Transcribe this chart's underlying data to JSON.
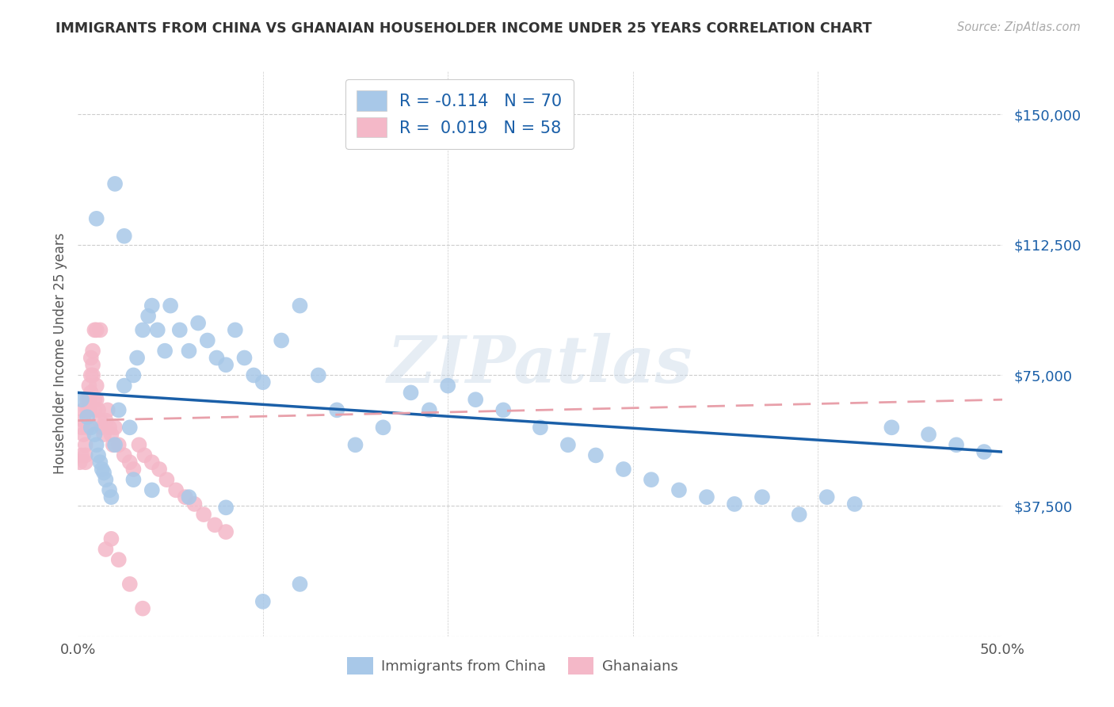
{
  "title": "IMMIGRANTS FROM CHINA VS GHANAIAN HOUSEHOLDER INCOME UNDER 25 YEARS CORRELATION CHART",
  "source": "Source: ZipAtlas.com",
  "ylabel": "Householder Income Under 25 years",
  "xlim": [
    0.0,
    0.5
  ],
  "ylim": [
    0,
    162500
  ],
  "yticks": [
    0,
    37500,
    75000,
    112500,
    150000
  ],
  "ytick_labels": [
    "",
    "$37,500",
    "$75,000",
    "$112,500",
    "$150,000"
  ],
  "xticks": [
    0.0,
    0.1,
    0.2,
    0.3,
    0.4,
    0.5
  ],
  "xtick_labels": [
    "0.0%",
    "",
    "",
    "",
    "",
    "50.0%"
  ],
  "legend1_r": "-0.114",
  "legend1_n": "70",
  "legend2_r": "0.019",
  "legend2_n": "58",
  "china_color": "#a8c8e8",
  "ghana_color": "#f4b8c8",
  "china_line_color": "#1a5fa8",
  "ghana_line_color": "#e8a0aa",
  "background_color": "#ffffff",
  "china_x": [
    0.002,
    0.005,
    0.007,
    0.009,
    0.01,
    0.011,
    0.012,
    0.013,
    0.014,
    0.015,
    0.017,
    0.018,
    0.02,
    0.022,
    0.025,
    0.028,
    0.03,
    0.032,
    0.035,
    0.038,
    0.04,
    0.043,
    0.047,
    0.05,
    0.055,
    0.06,
    0.065,
    0.07,
    0.075,
    0.08,
    0.085,
    0.09,
    0.095,
    0.1,
    0.11,
    0.12,
    0.13,
    0.14,
    0.15,
    0.165,
    0.18,
    0.19,
    0.2,
    0.215,
    0.23,
    0.25,
    0.265,
    0.28,
    0.295,
    0.31,
    0.325,
    0.34,
    0.355,
    0.37,
    0.39,
    0.405,
    0.42,
    0.44,
    0.46,
    0.475,
    0.49,
    0.01,
    0.02,
    0.03,
    0.04,
    0.06,
    0.08,
    0.1,
    0.12,
    0.025
  ],
  "china_y": [
    68000,
    63000,
    60000,
    58000,
    55000,
    52000,
    50000,
    48000,
    47000,
    45000,
    42000,
    40000,
    55000,
    65000,
    72000,
    60000,
    75000,
    80000,
    88000,
    92000,
    95000,
    88000,
    82000,
    95000,
    88000,
    82000,
    90000,
    85000,
    80000,
    78000,
    88000,
    80000,
    75000,
    73000,
    85000,
    95000,
    75000,
    65000,
    55000,
    60000,
    70000,
    65000,
    72000,
    68000,
    65000,
    60000,
    55000,
    52000,
    48000,
    45000,
    42000,
    40000,
    38000,
    40000,
    35000,
    40000,
    38000,
    60000,
    58000,
    55000,
    53000,
    120000,
    130000,
    45000,
    42000,
    40000,
    37000,
    10000,
    15000,
    115000
  ],
  "ghana_x": [
    0.001,
    0.002,
    0.002,
    0.003,
    0.003,
    0.003,
    0.004,
    0.004,
    0.004,
    0.005,
    0.005,
    0.005,
    0.006,
    0.006,
    0.006,
    0.007,
    0.007,
    0.007,
    0.008,
    0.008,
    0.008,
    0.009,
    0.009,
    0.01,
    0.01,
    0.011,
    0.012,
    0.013,
    0.014,
    0.015,
    0.016,
    0.017,
    0.018,
    0.019,
    0.02,
    0.022,
    0.025,
    0.028,
    0.03,
    0.033,
    0.036,
    0.04,
    0.044,
    0.048,
    0.053,
    0.058,
    0.063,
    0.068,
    0.074,
    0.08,
    0.009,
    0.01,
    0.012,
    0.015,
    0.018,
    0.022,
    0.028,
    0.035
  ],
  "ghana_y": [
    50000,
    52000,
    60000,
    65000,
    62000,
    58000,
    55000,
    52000,
    50000,
    68000,
    65000,
    60000,
    72000,
    68000,
    65000,
    80000,
    75000,
    70000,
    82000,
    78000,
    75000,
    68000,
    65000,
    72000,
    68000,
    65000,
    62000,
    60000,
    58000,
    62000,
    65000,
    60000,
    58000,
    55000,
    60000,
    55000,
    52000,
    50000,
    48000,
    55000,
    52000,
    50000,
    48000,
    45000,
    42000,
    40000,
    38000,
    35000,
    32000,
    30000,
    88000,
    88000,
    88000,
    25000,
    28000,
    22000,
    15000,
    8000
  ],
  "china_line_x0": 0.0,
  "china_line_x1": 0.5,
  "china_line_y0": 70000,
  "china_line_y1": 53000,
  "ghana_line_x0": 0.0,
  "ghana_line_x1": 0.5,
  "ghana_line_y0": 62000,
  "ghana_line_y1": 68000
}
